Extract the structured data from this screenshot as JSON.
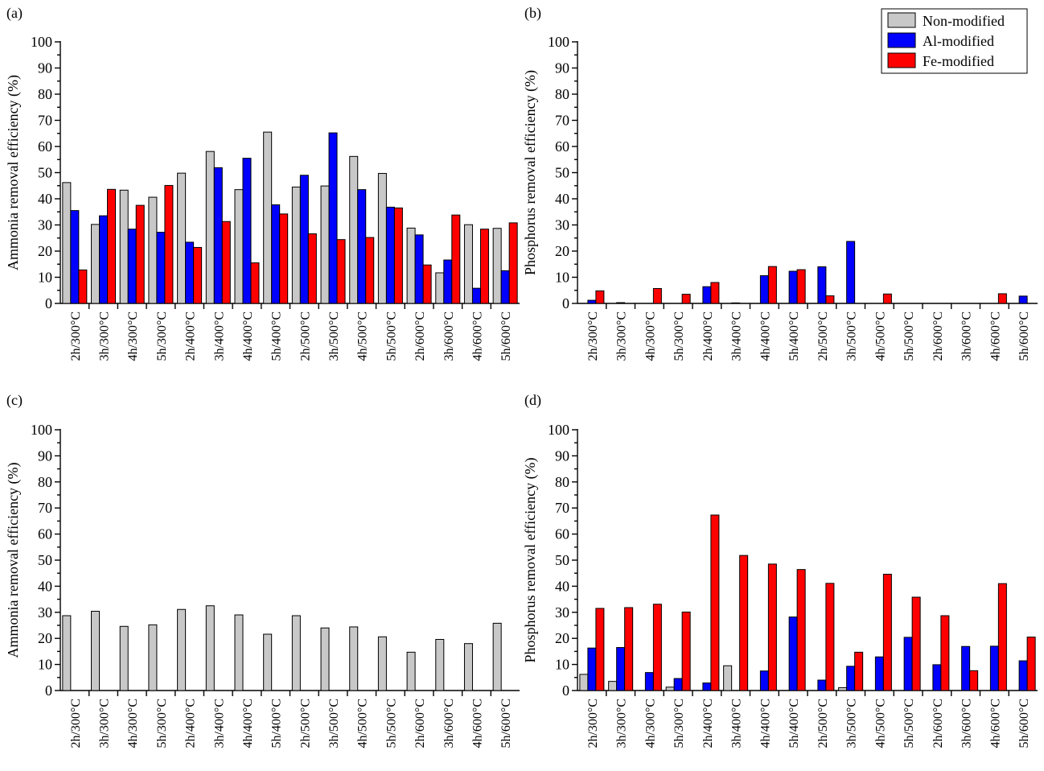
{
  "colors": {
    "non_modified": "#c8c8c8",
    "al_modified": "#0000ff",
    "fe_modified": "#ff0000"
  },
  "legend": {
    "placement": "top-right of panel (b)",
    "entries": [
      {
        "key": "non_modified",
        "label": "Non-modified"
      },
      {
        "key": "al_modified",
        "label": "Al-modified"
      },
      {
        "key": "fe_modified",
        "label": "Fe-modified"
      }
    ]
  },
  "chart_data": [
    {
      "panel": "(a)",
      "type": "bar",
      "ylabel": "Ammonia removal efficiency (%)",
      "ylim": [
        0,
        100
      ],
      "yticks": [
        0,
        10,
        20,
        30,
        40,
        50,
        60,
        70,
        80,
        90,
        100
      ],
      "grid": false,
      "categories": [
        "2h/300°C",
        "3h/300°C",
        "4h/300°C",
        "5h/300°C",
        "2h/400°C",
        "3h/400°C",
        "4h/400°C",
        "5h/400°C",
        "2h/500°C",
        "3h/500°C",
        "4h/500°C",
        "5h/500°C",
        "2h/600°C",
        "3h/600°C",
        "4h/600°C",
        "5h/600°C"
      ],
      "series": [
        {
          "name": "Non-modified",
          "key": "non_modified",
          "values": [
            46.2,
            30.2,
            43.3,
            40.6,
            49.8,
            58.1,
            43.5,
            65.5,
            44.5,
            44.9,
            56.2,
            49.7,
            28.8,
            11.7,
            30.1,
            28.7
          ]
        },
        {
          "name": "Al-modified",
          "key": "al_modified",
          "values": [
            35.5,
            33.5,
            28.4,
            27.2,
            23.4,
            51.9,
            55.5,
            37.7,
            49.0,
            65.2,
            43.5,
            36.8,
            26.2,
            16.6,
            5.8,
            12.5
          ]
        },
        {
          "name": "Fe-modified",
          "key": "fe_modified",
          "values": [
            12.8,
            43.6,
            37.5,
            45.1,
            21.4,
            31.3,
            15.5,
            34.2,
            26.6,
            24.4,
            25.2,
            36.5,
            14.7,
            33.8,
            28.4,
            30.8
          ]
        }
      ]
    },
    {
      "panel": "(b)",
      "type": "bar",
      "ylabel": "Phosphorus removal efficiency (%)",
      "ylim": [
        0,
        100
      ],
      "yticks": [
        0,
        10,
        20,
        30,
        40,
        50,
        60,
        70,
        80,
        90,
        100
      ],
      "grid": false,
      "categories": [
        "2h/300°C",
        "3h/300°C",
        "4h/300°C",
        "5h/300°C",
        "2h/400°C",
        "3h/400°C",
        "4h/400°C",
        "5h/400°C",
        "2h/500°C",
        "3h/500°C",
        "4h/500°C",
        "5h/500°C",
        "2h/600°C",
        "3h/600°C",
        "4h/600°C",
        "5h/600°C"
      ],
      "series": [
        {
          "name": "Non-modified",
          "key": "non_modified",
          "values": [
            0,
            0,
            0,
            0,
            0,
            0,
            0,
            0,
            0,
            0,
            0,
            0,
            0,
            0,
            0,
            0
          ]
        },
        {
          "name": "Al-modified",
          "key": "al_modified",
          "values": [
            1.2,
            0.3,
            0,
            0,
            6.4,
            0.2,
            10.6,
            12.3,
            14.0,
            23.7,
            0,
            0,
            0,
            0,
            0,
            2.8
          ]
        },
        {
          "name": "Fe-modified",
          "key": "fe_modified",
          "values": [
            4.8,
            0,
            5.7,
            3.5,
            8.0,
            0,
            14.1,
            12.9,
            2.9,
            0,
            3.6,
            0,
            0,
            0,
            3.7,
            0
          ]
        }
      ]
    },
    {
      "panel": "(c)",
      "type": "bar",
      "ylabel": "Ammonia removal efficiency (%)",
      "ylim": [
        0,
        100
      ],
      "yticks": [
        0,
        10,
        20,
        30,
        40,
        50,
        60,
        70,
        80,
        90,
        100
      ],
      "grid": false,
      "categories": [
        "2h/300°C",
        "3h/300°C",
        "4h/300°C",
        "5h/300°C",
        "2h/400°C",
        "3h/400°C",
        "4h/400°C",
        "5h/400°C",
        "2h/500°C",
        "3h/500°C",
        "4h/500°C",
        "5h/500°C",
        "2h/600°C",
        "3h/600°C",
        "4h/600°C",
        "5h/600°C"
      ],
      "series": [
        {
          "name": "Non-modified",
          "key": "non_modified",
          "values": [
            28.7,
            30.4,
            24.6,
            25.2,
            31.1,
            32.5,
            29.0,
            21.6,
            28.7,
            24.0,
            24.4,
            20.6,
            14.7,
            19.6,
            18.0,
            25.8
          ]
        },
        {
          "name": "Al-modified",
          "key": "al_modified",
          "values": [
            0,
            0,
            0,
            0,
            0,
            0,
            0,
            0,
            0,
            0,
            0,
            0,
            0,
            0,
            0,
            0
          ]
        },
        {
          "name": "Fe-modified",
          "key": "fe_modified",
          "values": [
            0,
            0,
            0,
            0,
            0,
            0,
            0,
            0,
            0,
            0,
            0,
            0,
            0,
            0,
            0,
            0
          ]
        }
      ]
    },
    {
      "panel": "(d)",
      "type": "bar",
      "ylabel": "Phosphorus removal efficiency (%)",
      "ylim": [
        0,
        100
      ],
      "yticks": [
        0,
        10,
        20,
        30,
        40,
        50,
        60,
        70,
        80,
        90,
        100
      ],
      "grid": false,
      "categories": [
        "2h/300°C",
        "3h/300°C",
        "4h/300°C",
        "5h/300°C",
        "2h/400°C",
        "3h/400°C",
        "4h/400°C",
        "5h/400°C",
        "2h/500°C",
        "3h/500°C",
        "4h/500°C",
        "5h/500°C",
        "2h/600°C",
        "3h/600°C",
        "4h/600°C",
        "5h/600°C"
      ],
      "series": [
        {
          "name": "Non-modified",
          "key": "non_modified",
          "values": [
            6.2,
            3.5,
            0,
            1.3,
            0,
            9.5,
            0,
            0,
            0,
            1.1,
            0,
            0,
            0,
            0,
            0,
            0
          ]
        },
        {
          "name": "Al-modified",
          "key": "al_modified",
          "values": [
            16.3,
            16.5,
            6.9,
            4.6,
            2.9,
            0,
            7.5,
            28.2,
            4.0,
            9.3,
            12.9,
            20.4,
            9.9,
            16.9,
            17.0,
            11.4
          ]
        },
        {
          "name": "Fe-modified",
          "key": "fe_modified",
          "values": [
            31.5,
            31.8,
            33.1,
            30.1,
            67.3,
            51.8,
            48.5,
            46.4,
            41.1,
            14.7,
            44.6,
            35.8,
            28.7,
            7.6,
            41.0,
            20.5
          ]
        }
      ]
    }
  ]
}
